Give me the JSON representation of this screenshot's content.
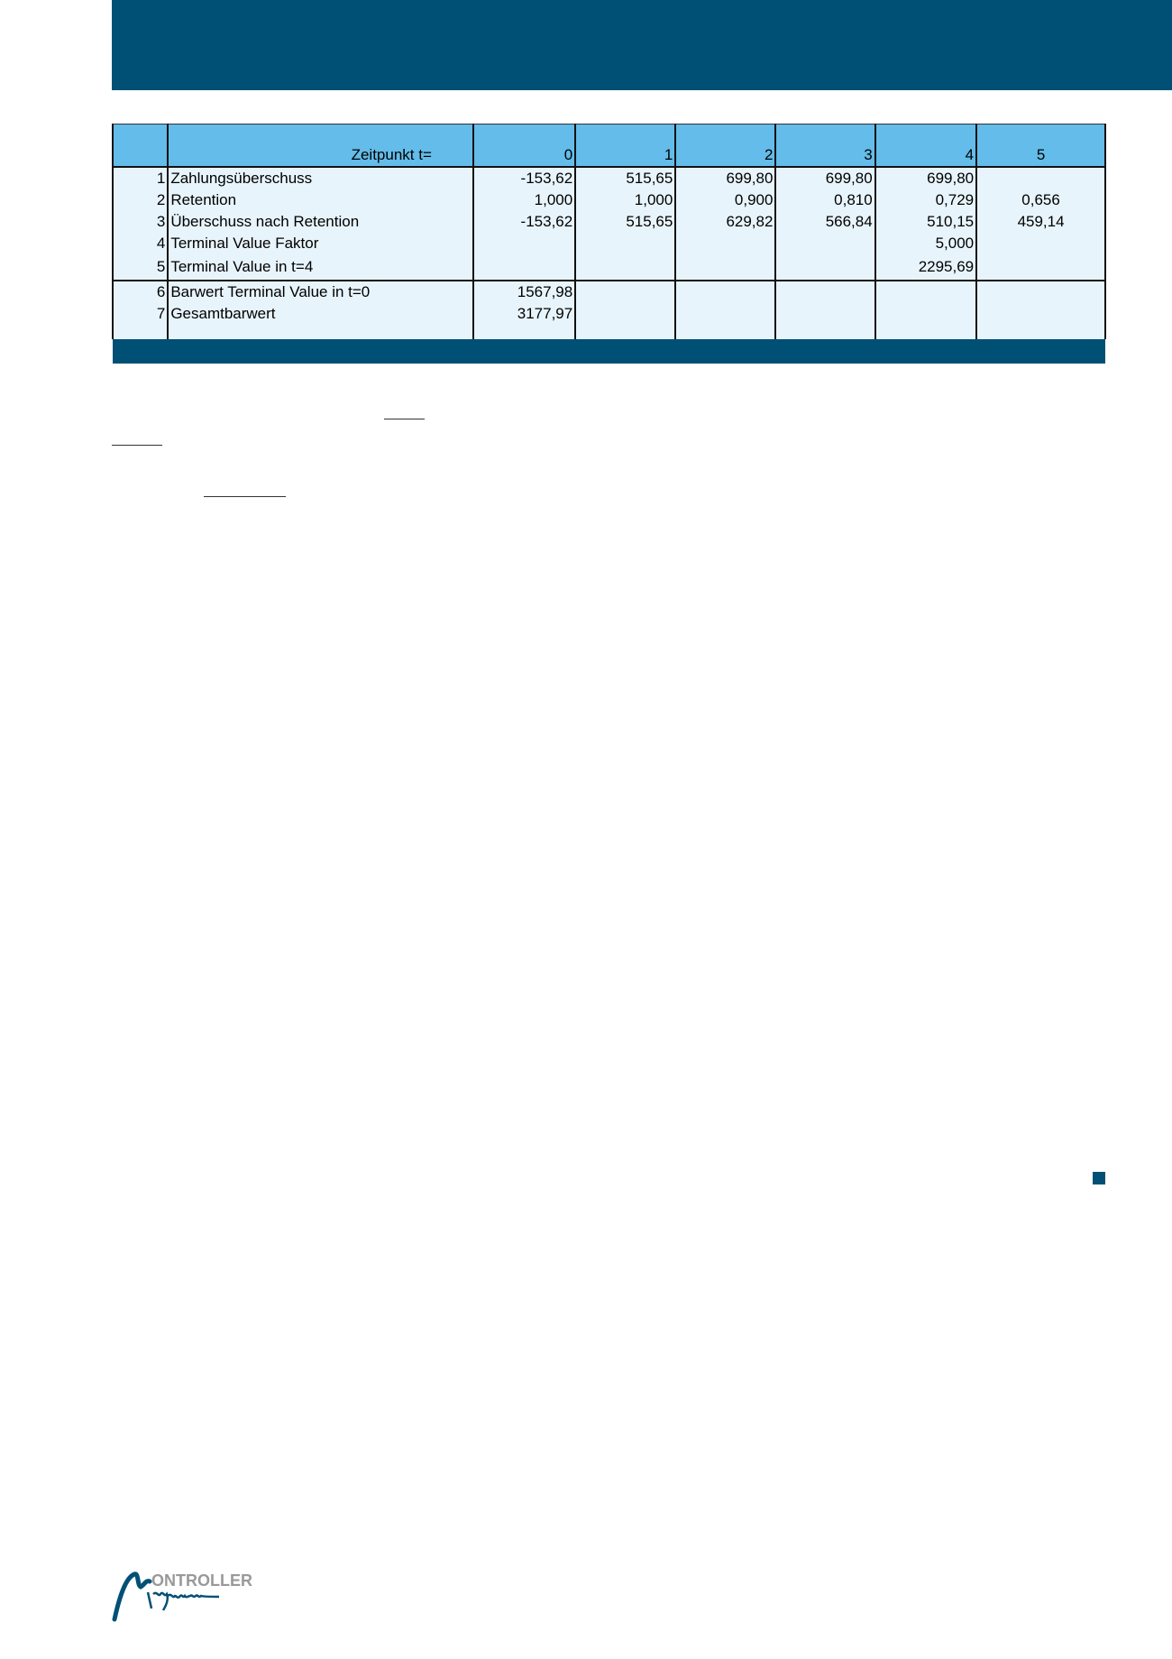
{
  "colors": {
    "brand_dark": "#005075",
    "header_blue": "#63bce9",
    "row_bg": "#e8f4fc"
  },
  "table": {
    "header": {
      "label": "Zeitpunkt t=",
      "periods": [
        "0",
        "1",
        "2",
        "3",
        "4",
        "5"
      ]
    },
    "rows": [
      {
        "no": "1",
        "label": "Zahlungsüberschuss",
        "values": [
          "-153,62",
          "515,65",
          "699,80",
          "699,80",
          "699,80",
          ""
        ]
      },
      {
        "no": "2",
        "label": "Retention",
        "values": [
          "1,000",
          "1,000",
          "0,900",
          "0,810",
          "0,729",
          "0,656"
        ]
      },
      {
        "no": "3",
        "label": "Überschuss nach Retention",
        "values": [
          "-153,62",
          "515,65",
          "629,82",
          "566,84",
          "510,15",
          "459,14"
        ]
      },
      {
        "no": "4",
        "label": "Terminal Value Faktor",
        "values": [
          "",
          "",
          "",
          "",
          "5,000",
          ""
        ]
      },
      {
        "no": "5",
        "label": "Terminal Value in t=4",
        "values": [
          "",
          "",
          "",
          "",
          "2295,69",
          ""
        ]
      },
      {
        "no": "6",
        "label": "Barwert Terminal Value in t=0",
        "values": [
          "1567,98",
          "",
          "",
          "",
          "",
          ""
        ]
      },
      {
        "no": "7",
        "label": "Gesamtbarwert",
        "values": [
          "3177,97",
          "",
          "",
          "",
          "",
          ""
        ]
      }
    ]
  },
  "logo": {
    "text_top": "CONTROLLER",
    "text_script": "Magazin"
  }
}
